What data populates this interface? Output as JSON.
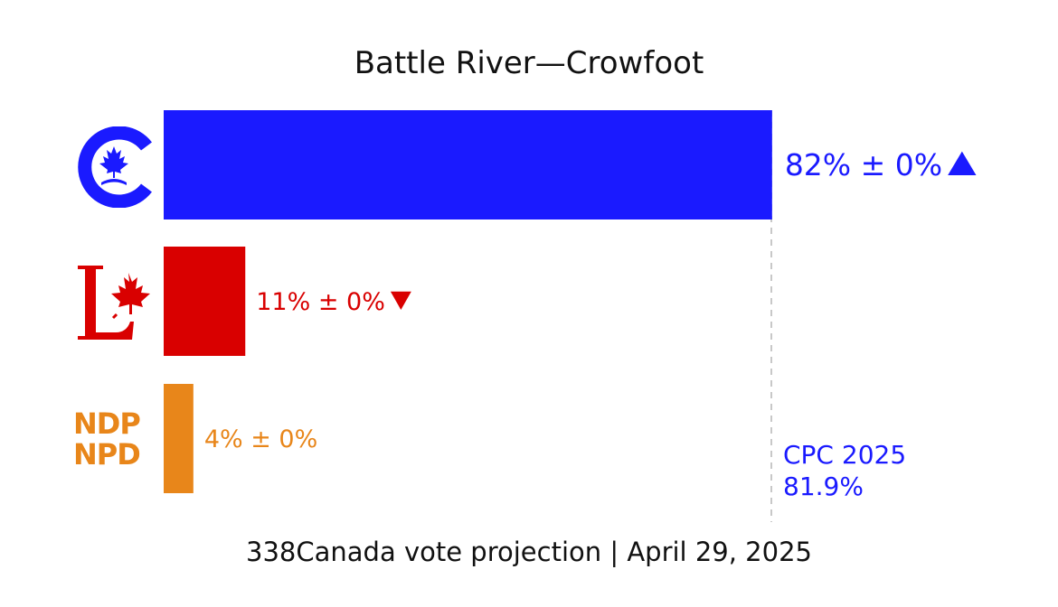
{
  "chart_data": {
    "type": "bar",
    "orientation": "horizontal",
    "title": "Battle River—Crowfoot",
    "footer": "338Canada vote projection | April 29, 2025",
    "xlim": [
      0,
      100
    ],
    "series": [
      {
        "party": "CPC",
        "value": 82,
        "error": 0,
        "label": "82% ± 0%",
        "trend": "up",
        "color": "#1a1aff"
      },
      {
        "party": "LPC",
        "value": 11,
        "error": 0,
        "label": "11% ± 0%",
        "trend": "down",
        "color": "#d90000"
      },
      {
        "party": "NDP",
        "value": 4,
        "error": 0,
        "label": "4% ± 0%",
        "trend": "none",
        "color": "#e8861a"
      }
    ],
    "reference": {
      "label_line1": "CPC 2025",
      "label_line2": "81.9%",
      "value": 81.9,
      "color": "#1a1aff"
    }
  },
  "logos": {
    "ndp_line1": "NDP",
    "ndp_line2": "NPD",
    "cpc_color": "#1a1aff",
    "lpc_color": "#d90000",
    "ndp_color": "#e8861a"
  }
}
